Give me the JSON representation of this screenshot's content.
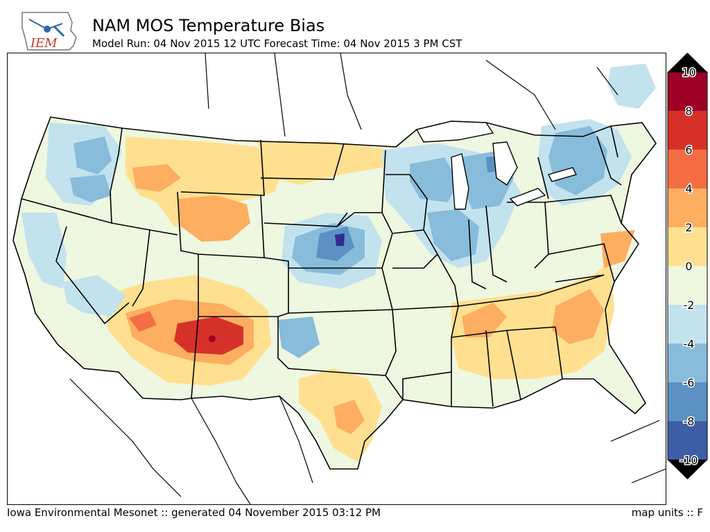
{
  "header": {
    "title": "NAM MOS Temperature Bias",
    "subtitle": "Model Run: 04 Nov 2015 12 UTC Forecast Time: 04 Nov 2015 3 PM CST"
  },
  "logo": {
    "text": "IEM"
  },
  "colorbar": {
    "labels": [
      "10",
      "8",
      "6",
      "4",
      "2",
      "0",
      "-2",
      "-4",
      "-6",
      "-8",
      "-10"
    ],
    "colors": [
      "#9d0226",
      "#d63128",
      "#f46d43",
      "#fdae61",
      "#fee090",
      "#eef7e0",
      "#c2e2ee",
      "#88bcdb",
      "#5b91c3",
      "#3e5ea8",
      "#2c2f8d"
    ],
    "over_color": "#000000",
    "under_color": "#000000"
  },
  "footer": {
    "left": "Iowa Environmental Mesonet :: generated 04 November 2015 03:12 PM",
    "right": "map units :: F"
  }
}
